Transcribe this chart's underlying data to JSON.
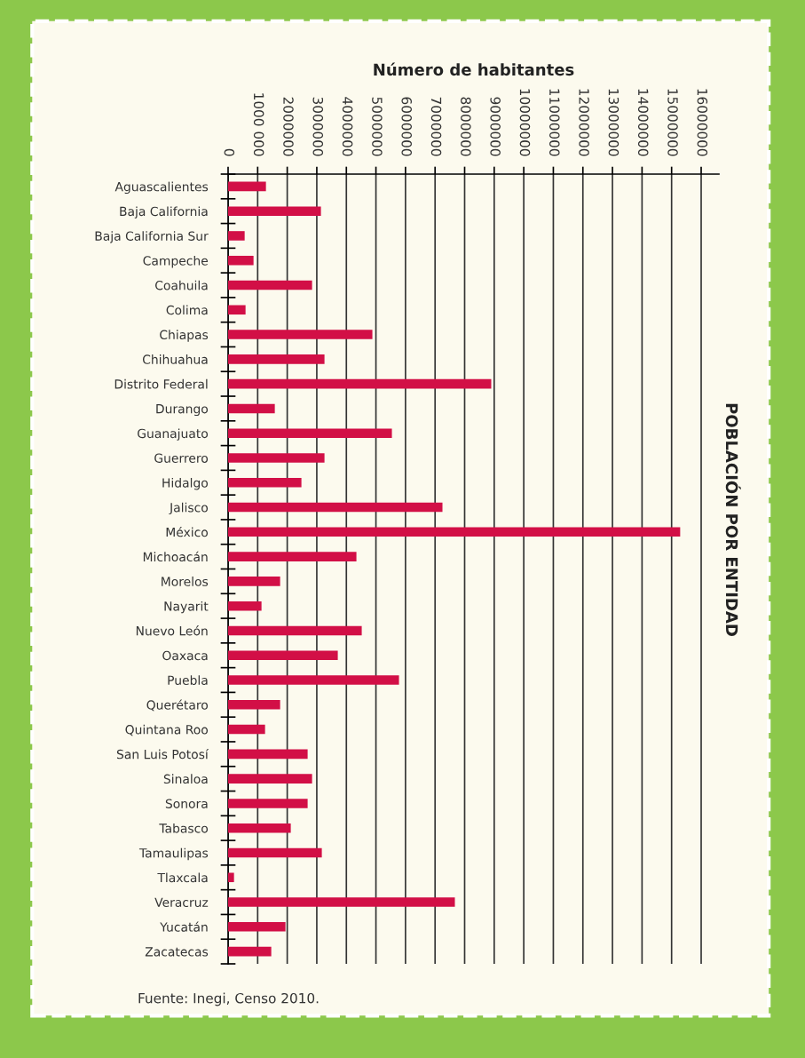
{
  "chart_data": {
    "type": "bar",
    "orientation": "horizontal",
    "xlabel": "Número de habitantes",
    "ylabel": "POBLACIÓN POR ENTIDAD",
    "categories": [
      "Aguascalientes",
      "Baja California",
      "Baja California Sur",
      "Campeche",
      "Coahuila",
      "Colima",
      "Chiapas",
      "Chihuahua",
      "Distrito Federal",
      "Durango",
      "Guanajuato",
      "Guerrero",
      "Hidalgo",
      "Jalisco",
      "México",
      "Michoacán",
      "Morelos",
      "Nayarit",
      "Nuevo León",
      "Oaxaca",
      "Puebla",
      "Querétaro",
      "Quintana Roo",
      "San Luis Potosí",
      "Sinaloa",
      "Sonora",
      "Tabasco",
      "Tamaulipas",
      "Tlaxcala",
      "Veracruz",
      "Yucatán",
      "Zacatecas"
    ],
    "values": [
      1280000,
      3140000,
      560000,
      860000,
      2840000,
      590000,
      4880000,
      3260000,
      8900000,
      1580000,
      5540000,
      3260000,
      2480000,
      7250000,
      15290000,
      4340000,
      1760000,
      1130000,
      4520000,
      3710000,
      5780000,
      1760000,
      1250000,
      2690000,
      2840000,
      2690000,
      2120000,
      3170000,
      200000,
      7670000,
      1940000,
      1460000
    ],
    "color": "#d20f46",
    "xlim": [
      0,
      16600000
    ],
    "xticks": [
      0,
      {
        "value": 1000000,
        "label": "1000 000"
      },
      2000000,
      3000000,
      4000000,
      5000000,
      6000000,
      7000000,
      8000000,
      9000000,
      10000000,
      11000000,
      12000000,
      13000000,
      14000000,
      15000000,
      16000000
    ],
    "grid": "x",
    "annotations": [
      "Fuente: Inegi, Censo 2010."
    ]
  }
}
